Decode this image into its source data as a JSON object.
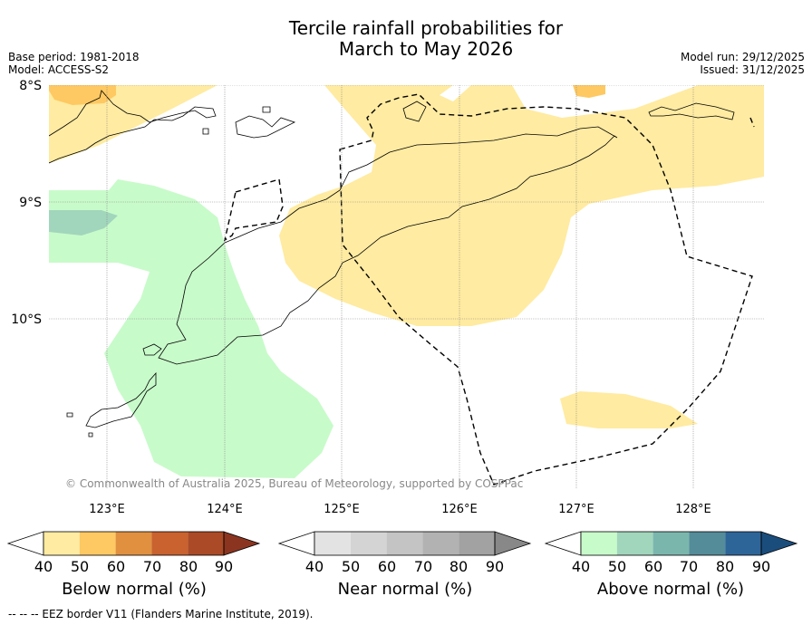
{
  "title": [
    "Tercile rainfall probabilities for",
    "March to May 2026"
  ],
  "meta_left": [
    "Base period: 1981-2018",
    "Model: ACCESS-S2"
  ],
  "meta_right": [
    "Model run: 29/12/2025",
    "Issued: 31/12/2025"
  ],
  "lat_labels": [
    "8°S",
    "9°S",
    "10°S"
  ],
  "lon_labels": [
    "123°E",
    "124°E",
    "125°E",
    "126°E",
    "127°E",
    "128°E"
  ],
  "copyright": "© Commonwealth of Australia 2025, Bureau of Meteorology, supported by COSPPac",
  "colorbars": [
    {
      "name": "below",
      "title": "Below normal (%)",
      "ticks": [
        "40",
        "50",
        "60",
        "70",
        "80",
        "90"
      ],
      "colors": [
        "#ffeba1",
        "#fec962",
        "#e0903f",
        "#c9622f",
        "#ab4a26"
      ],
      "under": "#ffffff",
      "over": "#8b3520"
    },
    {
      "name": "near",
      "title": "Near normal (%)",
      "ticks": [
        "40",
        "50",
        "60",
        "70",
        "80",
        "90"
      ],
      "colors": [
        "#e3e3e3",
        "#d4d4d4",
        "#c4c4c4",
        "#b2b2b2",
        "#a2a2a2"
      ],
      "under": "#ffffff",
      "over": "#888888"
    },
    {
      "name": "above",
      "title": "Above normal (%)",
      "ticks": [
        "40",
        "50",
        "60",
        "70",
        "80",
        "90"
      ],
      "colors": [
        "#c8fbca",
        "#a1d6bc",
        "#7bb6ad",
        "#548c99",
        "#2e6599"
      ],
      "under": "#ffffff",
      "over": "#1b4d7c"
    }
  ],
  "footer": "--  --  -- EEZ border V11 (Flanders Marine Institute, 2019)."
}
